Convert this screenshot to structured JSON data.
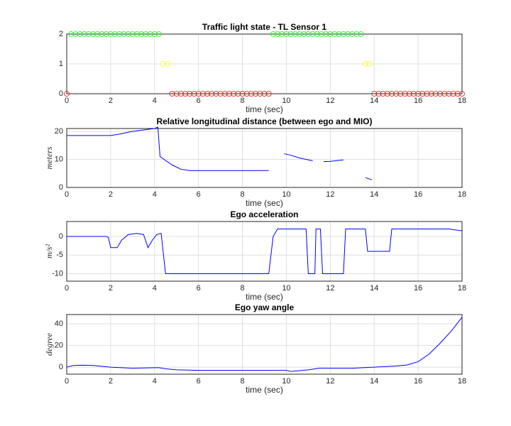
{
  "chart_data": [
    {
      "type": "scatter",
      "title": "Traffic light state - TL Sensor 1",
      "xlabel": "time (sec)",
      "xlim": [
        0,
        18
      ],
      "xticks": [
        0,
        2,
        4,
        6,
        8,
        10,
        12,
        14,
        16,
        18
      ],
      "ylim": [
        0,
        2
      ],
      "yticks": [
        0,
        1,
        2
      ],
      "grid": true,
      "series": [
        {
          "color": "#ff0000",
          "x": [
            0,
            4.8,
            5,
            5.2,
            5.4,
            5.6,
            5.8,
            6,
            6.2,
            6.4,
            6.6,
            6.8,
            7,
            7.2,
            7.4,
            7.6,
            7.8,
            8,
            8.2,
            8.4,
            8.6,
            8.8,
            9,
            9.2,
            14,
            14.2,
            14.4,
            14.6,
            14.8,
            15,
            15.2,
            15.4,
            15.6,
            15.8,
            16,
            16.2,
            16.4,
            16.6,
            16.8,
            17,
            17.2,
            17.4,
            17.6,
            17.8,
            18
          ],
          "values": [
            0,
            0,
            0,
            0,
            0,
            0,
            0,
            0,
            0,
            0,
            0,
            0,
            0,
            0,
            0,
            0,
            0,
            0,
            0,
            0,
            0,
            0,
            0,
            0,
            0,
            0,
            0,
            0,
            0,
            0,
            0,
            0,
            0,
            0,
            0,
            0,
            0,
            0,
            0,
            0,
            0,
            0,
            0,
            0,
            0
          ]
        },
        {
          "color": "#00ff00",
          "x": [
            0.2,
            0.4,
            0.6,
            0.8,
            1,
            1.2,
            1.4,
            1.6,
            1.8,
            2,
            2.2,
            2.4,
            2.6,
            2.8,
            3,
            3.2,
            3.4,
            3.6,
            3.8,
            4,
            4.2,
            9.4,
            9.6,
            9.8,
            10,
            10.2,
            10.4,
            10.6,
            10.8,
            11,
            11.2,
            11.4,
            11.6,
            11.8,
            12,
            12.2,
            12.4,
            12.6,
            12.8,
            13,
            13.2,
            13.4
          ],
          "values": [
            2,
            2,
            2,
            2,
            2,
            2,
            2,
            2,
            2,
            2,
            2,
            2,
            2,
            2,
            2,
            2,
            2,
            2,
            2,
            2,
            2,
            2,
            2,
            2,
            2,
            2,
            2,
            2,
            2,
            2,
            2,
            2,
            2,
            2,
            2,
            2,
            2,
            2,
            2,
            2,
            2,
            2
          ]
        },
        {
          "color": "#ffff00",
          "x": [
            4.4,
            4.6,
            13.6,
            13.8
          ],
          "values": [
            1,
            1,
            1,
            1
          ]
        }
      ]
    },
    {
      "type": "line",
      "title": "Relative longitudinal distance (between ego and MIO)",
      "xlabel": "time (sec)",
      "ylabel": "meters",
      "xlim": [
        0,
        18
      ],
      "xticks": [
        0,
        2,
        4,
        6,
        8,
        10,
        12,
        14,
        16,
        18
      ],
      "ylim": [
        0,
        21
      ],
      "yticks": [
        0,
        10,
        20
      ],
      "grid": true,
      "series": [
        {
          "color": "#0000ff",
          "x": [
            0,
            2,
            2.4,
            3,
            4,
            4.15,
            4.25,
            4.8,
            5.2,
            5.6,
            6,
            9.2,
            null,
            9.9,
            10.2,
            10.6,
            11.2,
            null,
            11.7,
            12,
            12.6,
            null,
            13.6,
            13.9
          ],
          "values": [
            18.5,
            18.5,
            19,
            20,
            21,
            21.5,
            11,
            8,
            6.5,
            6,
            6,
            6,
            null,
            12,
            11.5,
            10.5,
            9.5,
            null,
            9.2,
            9.3,
            9.8,
            null,
            3.5,
            2.7
          ]
        }
      ]
    },
    {
      "type": "line",
      "title": "Ego acceleration",
      "xlabel": "time (sec)",
      "ylabel": "m/s²",
      "xlim": [
        0,
        18
      ],
      "xticks": [
        0,
        2,
        4,
        6,
        8,
        10,
        12,
        14,
        16,
        18
      ],
      "ylim": [
        -12,
        4
      ],
      "yticks": [
        -10,
        -5,
        0
      ],
      "grid": true,
      "series": [
        {
          "color": "#0000ff",
          "x": [
            0,
            1.8,
            1.9,
            2,
            2.3,
            2.5,
            2.8,
            3.2,
            3.5,
            3.7,
            3.9,
            4.1,
            4.3,
            4.5,
            9.2,
            9.4,
            9.6,
            10.9,
            11,
            11.3,
            11.35,
            11.55,
            11.65,
            12.6,
            12.7,
            13.6,
            13.7,
            14.7,
            14.8,
            17.4,
            18
          ],
          "values": [
            0,
            0,
            -0.3,
            -3,
            -3,
            -1,
            0.5,
            0.8,
            0.5,
            -3,
            -1,
            0.5,
            0.8,
            -10,
            -10,
            0,
            2,
            2,
            -10,
            -10,
            2,
            2,
            -10,
            -10,
            2,
            2,
            -4,
            -4,
            2,
            2,
            1.5
          ]
        }
      ]
    },
    {
      "type": "line",
      "title": "Ego yaw angle",
      "xlabel": "time (sec)",
      "ylabel": "degree",
      "xlim": [
        0,
        18
      ],
      "xticks": [
        0,
        2,
        4,
        6,
        8,
        10,
        12,
        14,
        16,
        18
      ],
      "ylim": [
        -6.5,
        48.5
      ],
      "yticks": [
        0,
        20,
        40
      ],
      "grid": true,
      "series": [
        {
          "color": "#0000ff",
          "x": [
            0,
            0.3,
            0.7,
            1.2,
            2,
            3,
            4,
            4.2,
            4.5,
            5,
            6,
            10,
            10.2,
            10.5,
            11,
            11.5,
            13,
            14,
            15,
            15.5,
            16,
            16.5,
            17,
            17.5,
            18
          ],
          "values": [
            0,
            1.5,
            1.8,
            1.5,
            0,
            -1,
            -0.5,
            -0.5,
            -1.5,
            -2.5,
            -3,
            -3,
            -4,
            -3.5,
            -2.5,
            -1,
            -1,
            0,
            1,
            2,
            5,
            12,
            22,
            33,
            46
          ]
        }
      ]
    }
  ]
}
